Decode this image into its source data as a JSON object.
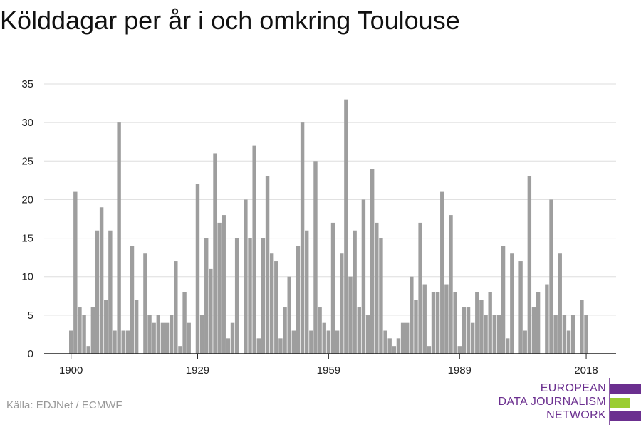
{
  "header": {
    "title": "Kölddagar per år i och omkring Toulouse"
  },
  "footer": {
    "source": "Källa: EDJNet / ECMWF"
  },
  "logo": {
    "lines": [
      "EUROPEAN",
      "DATA JOURNALISM",
      "NETWORK"
    ],
    "colors": [
      "#6b2f8f",
      "#9acd32",
      "#6b2f8f"
    ]
  },
  "chart_data": {
    "type": "bar",
    "title": "Kölddagar per år i och omkring Toulouse",
    "xlabel": "",
    "ylabel": "",
    "ylim": [
      0,
      35
    ],
    "yticks": [
      0,
      5,
      10,
      15,
      20,
      25,
      30,
      35
    ],
    "xticks": [
      1900,
      1929,
      1959,
      1989,
      2018
    ],
    "grid": true,
    "bar_color": "#9e9e9e",
    "x": [
      1900,
      1901,
      1902,
      1903,
      1904,
      1905,
      1906,
      1907,
      1908,
      1909,
      1910,
      1911,
      1912,
      1913,
      1914,
      1915,
      1916,
      1917,
      1918,
      1919,
      1920,
      1921,
      1922,
      1923,
      1924,
      1925,
      1926,
      1927,
      1928,
      1929,
      1930,
      1931,
      1932,
      1933,
      1934,
      1935,
      1936,
      1937,
      1938,
      1939,
      1940,
      1941,
      1942,
      1943,
      1944,
      1945,
      1946,
      1947,
      1948,
      1949,
      1950,
      1951,
      1952,
      1953,
      1954,
      1955,
      1956,
      1957,
      1958,
      1959,
      1960,
      1961,
      1962,
      1963,
      1964,
      1965,
      1966,
      1967,
      1968,
      1969,
      1970,
      1971,
      1972,
      1973,
      1974,
      1975,
      1976,
      1977,
      1978,
      1979,
      1980,
      1981,
      1982,
      1983,
      1984,
      1985,
      1986,
      1987,
      1988,
      1989,
      1990,
      1991,
      1992,
      1993,
      1994,
      1995,
      1996,
      1997,
      1998,
      1999,
      2000,
      2001,
      2002,
      2003,
      2004,
      2005,
      2006,
      2007,
      2008,
      2009,
      2010,
      2011,
      2012,
      2013,
      2014,
      2015,
      2016,
      2017,
      2018
    ],
    "values": [
      3,
      21,
      6,
      5,
      1,
      6,
      16,
      19,
      7,
      16,
      3,
      30,
      3,
      3,
      14,
      7,
      0,
      13,
      5,
      4,
      5,
      4,
      4,
      5,
      12,
      1,
      8,
      4,
      0,
      22,
      5,
      15,
      11,
      26,
      17,
      18,
      2,
      4,
      15,
      0,
      20,
      15,
      27,
      2,
      15,
      23,
      13,
      12,
      2,
      6,
      10,
      3,
      14,
      30,
      16,
      3,
      25,
      6,
      4,
      3,
      17,
      3,
      13,
      33,
      10,
      16,
      6,
      20,
      5,
      24,
      17,
      15,
      3,
      2,
      1,
      2,
      4,
      4,
      10,
      7,
      17,
      9,
      1,
      8,
      8,
      21,
      9,
      18,
      8,
      1,
      6,
      6,
      4,
      8,
      7,
      5,
      8,
      5,
      5,
      14,
      2,
      13,
      0,
      12,
      3,
      23,
      6,
      8,
      0,
      9,
      20,
      5,
      13,
      5,
      3,
      5,
      0,
      7,
      5
    ]
  }
}
